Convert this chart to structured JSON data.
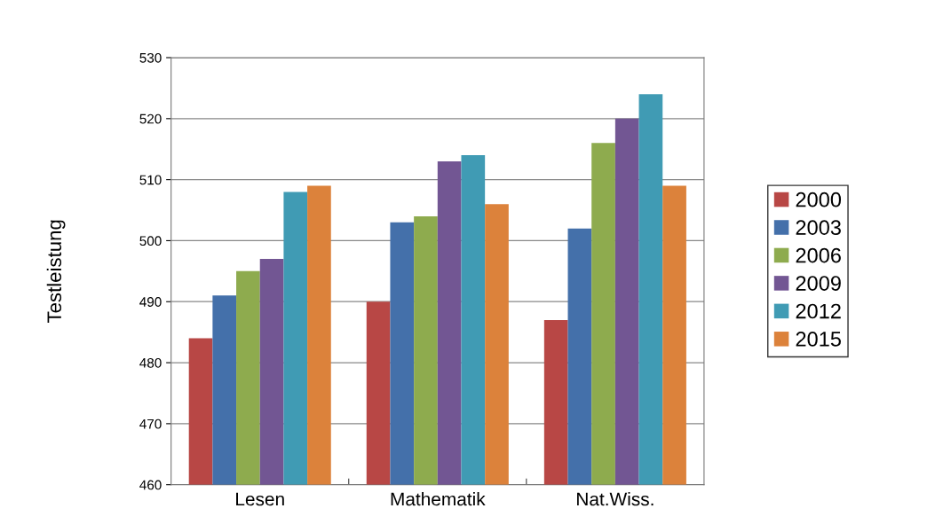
{
  "chart_data": {
    "type": "bar",
    "ylabel": "Testleistung",
    "categories": [
      "Lesen",
      "Mathematik",
      "Nat.Wiss."
    ],
    "series": [
      {
        "name": "2000",
        "color": "#b84745",
        "values": [
          484,
          490,
          487
        ]
      },
      {
        "name": "2003",
        "color": "#4470aa",
        "values": [
          491,
          503,
          502
        ]
      },
      {
        "name": "2006",
        "color": "#8eab4e",
        "values": [
          495,
          504,
          516
        ]
      },
      {
        "name": "2009",
        "color": "#725693",
        "values": [
          497,
          513,
          520
        ]
      },
      {
        "name": "2012",
        "color": "#409bb4",
        "values": [
          508,
          514,
          524
        ]
      },
      {
        "name": "2015",
        "color": "#dc823b",
        "values": [
          509,
          506,
          509
        ]
      }
    ],
    "ylim": [
      460,
      530
    ],
    "yticks": [
      460,
      470,
      480,
      490,
      500,
      510,
      520,
      530
    ],
    "grid": "y",
    "legend": "right"
  }
}
